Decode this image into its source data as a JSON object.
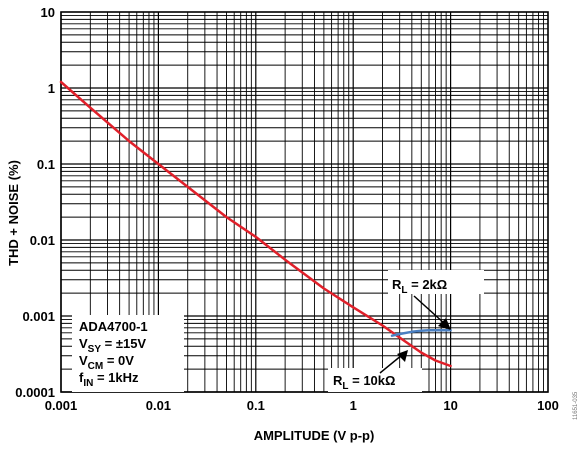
{
  "chart_data": {
    "type": "line",
    "title": "",
    "xlabel": "AMPLITUDE (V p-p)",
    "ylabel": "THD + NOISE (%)",
    "x_scale": "log",
    "y_scale": "log",
    "xlim": [
      0.001,
      100
    ],
    "ylim": [
      0.0001,
      10
    ],
    "x_ticks": [
      "0.001",
      "0.01",
      "0.1",
      "1",
      "10",
      "100"
    ],
    "y_ticks": [
      "0.0001",
      "0.001",
      "0.01",
      "0.1",
      "1",
      "10"
    ],
    "grid": true,
    "series": [
      {
        "name": "RL = 10kΩ",
        "color": "#e0202a",
        "x": [
          0.001,
          0.002,
          0.005,
          0.01,
          0.02,
          0.05,
          0.1,
          0.2,
          0.5,
          1,
          2,
          3,
          5,
          7,
          10
        ],
        "y": [
          1.2,
          0.55,
          0.2,
          0.1,
          0.05,
          0.02,
          0.011,
          0.0055,
          0.0023,
          0.0013,
          0.00075,
          0.00052,
          0.00033,
          0.00026,
          0.00022
        ]
      },
      {
        "name": "RL = 2kΩ",
        "color": "#4a7fc1",
        "x": [
          2.5,
          3,
          4,
          5,
          6,
          8,
          10
        ],
        "y": [
          0.00055,
          0.00058,
          0.00062,
          0.00064,
          0.00065,
          0.00065,
          0.00065
        ]
      }
    ],
    "annotations": {
      "rl_2k": {
        "main": "R",
        "sub": "L",
        "rest": " = 2kΩ"
      },
      "rl_10k": {
        "main": "R",
        "sub": "L",
        "rest": " = 10kΩ"
      },
      "conditions": [
        {
          "main": "ADA4700-1",
          "sub": "",
          "rest": ""
        },
        {
          "main": "V",
          "sub": "SY",
          "rest": " = ±15V"
        },
        {
          "main": "V",
          "sub": "CM",
          "rest": " = 0V"
        },
        {
          "main": "f",
          "sub": "IN",
          "rest": " = 1kHz"
        }
      ]
    },
    "figure_id": "11651-035"
  }
}
